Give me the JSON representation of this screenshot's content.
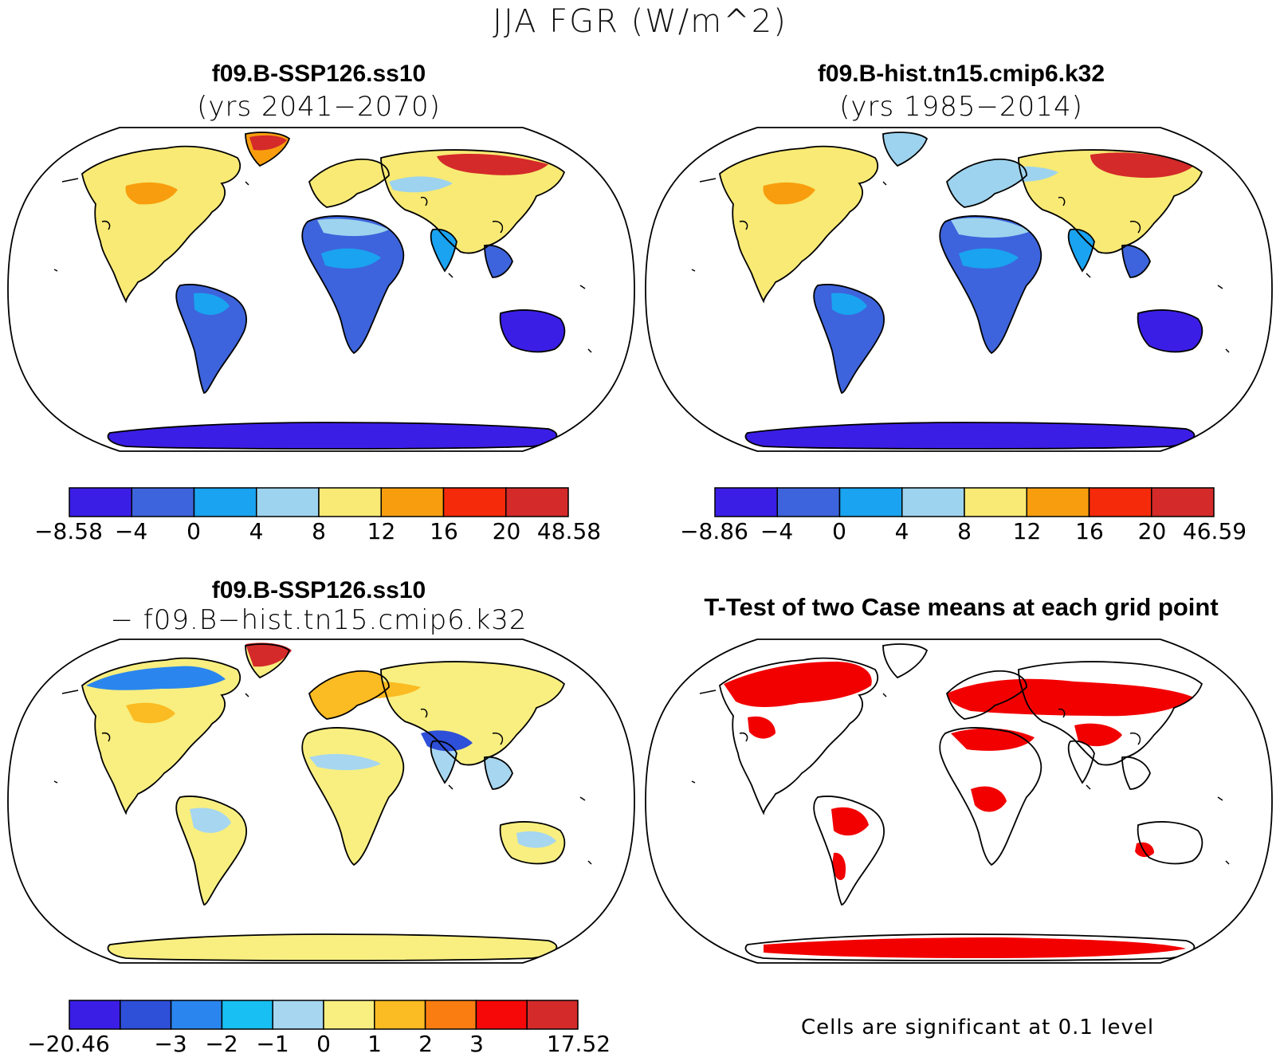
{
  "title": "JJA FGR (W/m^2)",
  "panels": {
    "top_left": {
      "title": "f09.B-SSP126.ss10",
      "subtitle": "(yrs 2041−2070)",
      "colorbar": {
        "colors": [
          "#3b1ee6",
          "#3d64dc",
          "#1aa3f0",
          "#9dd3ee",
          "#f8ea74",
          "#f89e0e",
          "#f52a0a",
          "#d42a2a"
        ],
        "labels": [
          "−8.58",
          "−4",
          "0",
          "4",
          "8",
          "12",
          "16",
          "20",
          "48.58"
        ]
      }
    },
    "top_right": {
      "title": "f09.B-hist.tn15.cmip6.k32",
      "subtitle": "(yrs 1985−2014)",
      "colorbar": {
        "colors": [
          "#3b1ee6",
          "#3d64dc",
          "#1aa3f0",
          "#9dd3ee",
          "#f8ea74",
          "#f89e0e",
          "#f52a0a",
          "#d42a2a"
        ],
        "labels": [
          "−8.86",
          "−4",
          "0",
          "4",
          "8",
          "12",
          "16",
          "20",
          "46.59"
        ]
      }
    },
    "bottom_left": {
      "title": "f09.B-SSP126.ss10",
      "subtitle": "− f09.B−hist.tn15.cmip6.k32",
      "colorbar": {
        "colors": [
          "#3b1ee6",
          "#2e4fd8",
          "#2a86ee",
          "#18bff2",
          "#a6d6f0",
          "#f8ef80",
          "#fbbb22",
          "#fa7d12",
          "#f60808",
          "#d42a2a"
        ],
        "labels": [
          "−20.46",
          "",
          "−3",
          "−2",
          "−1",
          "0",
          "1",
          "2",
          "3",
          "",
          "17.52"
        ]
      }
    },
    "bottom_right": {
      "title": "T-Test of two Case means at each grid point",
      "footnote": "Cells are significant at 0.1 level",
      "significance_color": "#f20000"
    }
  }
}
